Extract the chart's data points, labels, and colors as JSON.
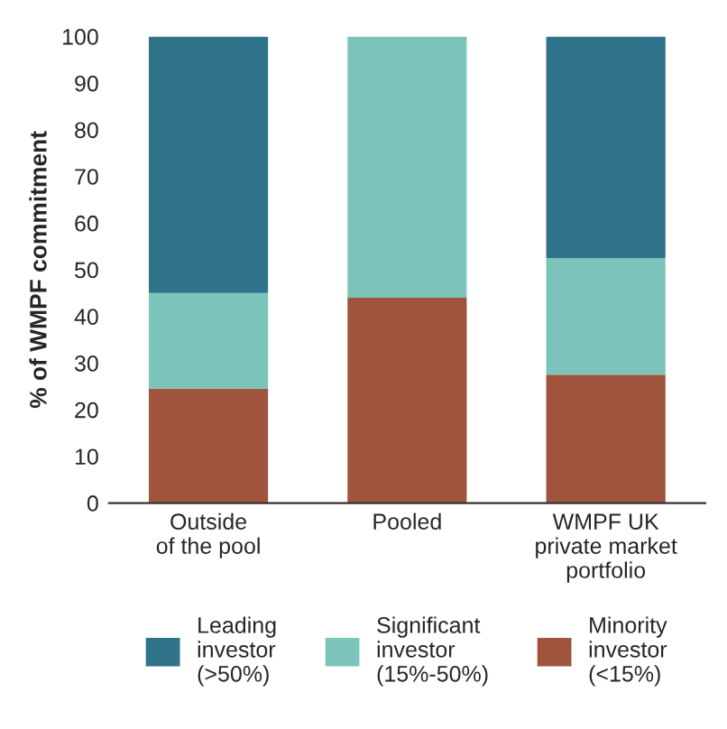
{
  "chart_data": {
    "type": "bar",
    "stacked": true,
    "ylabel": "% of WMPF commitment",
    "categories": [
      "Outside\nof the pool",
      "Pooled",
      "WMPF UK\nprivate market\nportfolio"
    ],
    "series": [
      {
        "name": "Minority\ninvestor\n(<15%)",
        "color": "#a0543d",
        "values": [
          24.5,
          44,
          27.5
        ]
      },
      {
        "name": "Significant\ninvestor\n(15%-50%)",
        "color": "#7cc4bb",
        "values": [
          20.5,
          56,
          25
        ]
      },
      {
        "name": "Leading\ninvestor\n(>50%)",
        "color": "#2e7389",
        "values": [
          55,
          null,
          47.5
        ]
      }
    ],
    "ylim": [
      0,
      100
    ],
    "yticks": [
      0,
      10,
      20,
      30,
      40,
      50,
      60,
      70,
      80,
      90,
      100
    ],
    "grid": false,
    "legend": "bottom"
  }
}
